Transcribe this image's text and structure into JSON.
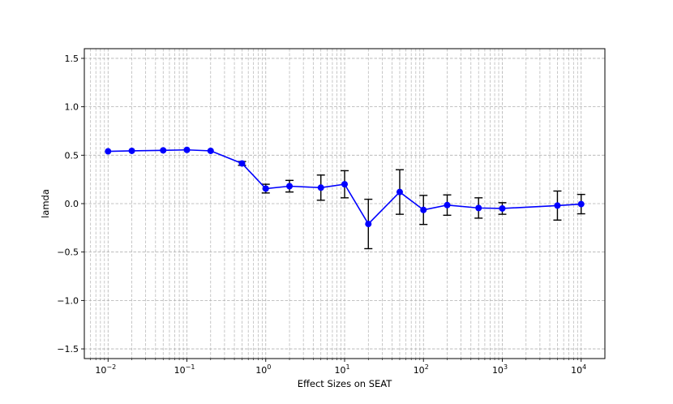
{
  "chart_data": {
    "type": "line",
    "title": "",
    "xlabel": "Effect Sizes on SEAT",
    "ylabel": "lamda",
    "xscale": "log",
    "xlim": [
      0.005,
      20000
    ],
    "ylim": [
      -1.6,
      1.6
    ],
    "grid": true,
    "grid_style": "dashed, major and minor",
    "legend": "none",
    "x_ticks": [
      {
        "value": 0.01,
        "base": "10",
        "exp": "−2"
      },
      {
        "value": 0.1,
        "base": "10",
        "exp": "−1"
      },
      {
        "value": 1,
        "base": "10",
        "exp": "0"
      },
      {
        "value": 10,
        "base": "10",
        "exp": "1"
      },
      {
        "value": 100,
        "base": "10",
        "exp": "2"
      },
      {
        "value": 1000,
        "base": "10",
        "exp": "3"
      },
      {
        "value": 10000,
        "base": "10",
        "exp": "4"
      }
    ],
    "y_ticks": [
      {
        "value": 1.5,
        "label": "1.5"
      },
      {
        "value": 1.0,
        "label": "1.0"
      },
      {
        "value": 0.5,
        "label": "0.5"
      },
      {
        "value": 0.0,
        "label": "0.0"
      },
      {
        "value": -0.5,
        "label": "−0.5"
      },
      {
        "value": -1.0,
        "label": "−1.0"
      },
      {
        "value": -1.5,
        "label": "−1.5"
      }
    ],
    "series": [
      {
        "x": [
          0.01,
          0.02,
          0.05,
          0.1,
          0.2,
          0.5,
          1,
          2,
          5,
          10,
          20,
          50,
          100,
          200,
          500,
          1000,
          5000,
          10000
        ],
        "y": [
          0.54,
          0.545,
          0.55,
          0.555,
          0.545,
          0.415,
          0.155,
          0.18,
          0.165,
          0.2,
          -0.21,
          0.12,
          -0.065,
          -0.015,
          -0.045,
          -0.05,
          -0.02,
          -0.005
        ],
        "err": [
          0.0,
          0.0,
          0.0,
          0.0,
          0.0,
          0.02,
          0.045,
          0.06,
          0.13,
          0.14,
          0.255,
          0.23,
          0.15,
          0.105,
          0.105,
          0.06,
          0.15,
          0.1
        ]
      }
    ],
    "colors": {
      "line": "#0000ff",
      "marker": "#0000ff",
      "errorbar": "#000000",
      "grid": "#b0b0b0",
      "axis": "#000000"
    }
  }
}
